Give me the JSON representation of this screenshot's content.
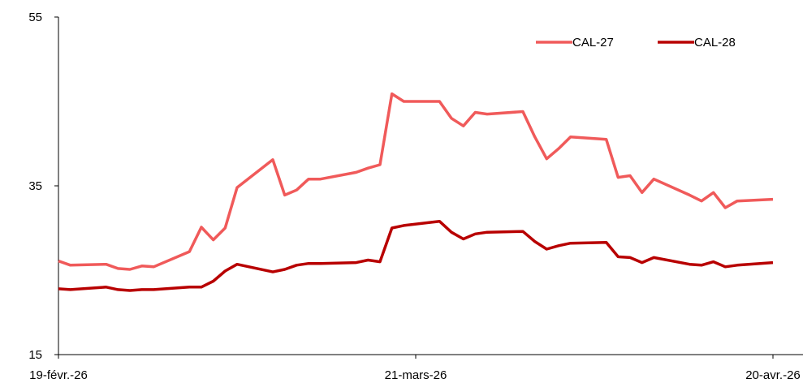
{
  "chart_data": {
    "type": "line",
    "title": "",
    "xlabel": "",
    "ylabel": "",
    "ylim": [
      15,
      55
    ],
    "yticks": [
      15,
      35,
      55
    ],
    "xlim": [
      "2026-02-19",
      "2026-04-20"
    ],
    "xtick_labels": [
      "19-févr.-26",
      "21-mars-26",
      "20-avr.-26"
    ],
    "xtick_dates": [
      "2026-02-19",
      "2026-03-21",
      "2026-04-20"
    ],
    "grid": false,
    "legend_position": "top-right",
    "x": [
      "2026-02-19",
      "2026-02-20",
      "2026-02-23",
      "2026-02-24",
      "2026-02-25",
      "2026-02-26",
      "2026-02-27",
      "2026-03-02",
      "2026-03-03",
      "2026-03-04",
      "2026-03-05",
      "2026-03-06",
      "2026-03-09",
      "2026-03-10",
      "2026-03-11",
      "2026-03-12",
      "2026-03-13",
      "2026-03-16",
      "2026-03-17",
      "2026-03-18",
      "2026-03-19",
      "2026-03-20",
      "2026-03-23",
      "2026-03-24",
      "2026-03-25",
      "2026-03-26",
      "2026-03-27",
      "2026-03-30",
      "2026-03-31",
      "2026-04-01",
      "2026-04-02",
      "2026-04-03",
      "2026-04-06",
      "2026-04-07",
      "2026-04-08",
      "2026-04-09",
      "2026-04-10",
      "2026-04-13",
      "2026-04-14",
      "2026-04-15",
      "2026-04-16",
      "2026-04-17",
      "2026-04-20"
    ],
    "series": [
      {
        "name": "CAL-27",
        "color": "#f05a5a",
        "values": [
          26.1,
          25.6,
          25.7,
          25.2,
          25.1,
          25.5,
          25.4,
          27.2,
          30.1,
          28.6,
          30.0,
          34.8,
          38.1,
          33.9,
          34.5,
          35.8,
          35.8,
          36.6,
          37.1,
          37.5,
          45.9,
          45.0,
          45.0,
          43.0,
          42.1,
          43.7,
          43.5,
          43.8,
          40.8,
          38.2,
          39.4,
          40.8,
          40.5,
          36.0,
          36.2,
          34.2,
          35.8,
          33.9,
          33.2,
          34.2,
          32.4,
          33.2,
          33.4
        ]
      },
      {
        "name": "CAL-28",
        "color": "#b80000",
        "values": [
          22.8,
          22.7,
          23.0,
          22.7,
          22.6,
          22.7,
          22.7,
          23.0,
          23.0,
          23.7,
          24.9,
          25.7,
          24.8,
          25.1,
          25.6,
          25.8,
          25.8,
          25.9,
          26.2,
          26.0,
          30.0,
          30.3,
          30.8,
          29.5,
          28.7,
          29.3,
          29.5,
          29.6,
          28.4,
          27.5,
          27.9,
          28.2,
          28.3,
          26.6,
          26.5,
          25.9,
          26.5,
          25.7,
          25.6,
          26.0,
          25.4,
          25.6,
          25.9
        ]
      }
    ]
  }
}
